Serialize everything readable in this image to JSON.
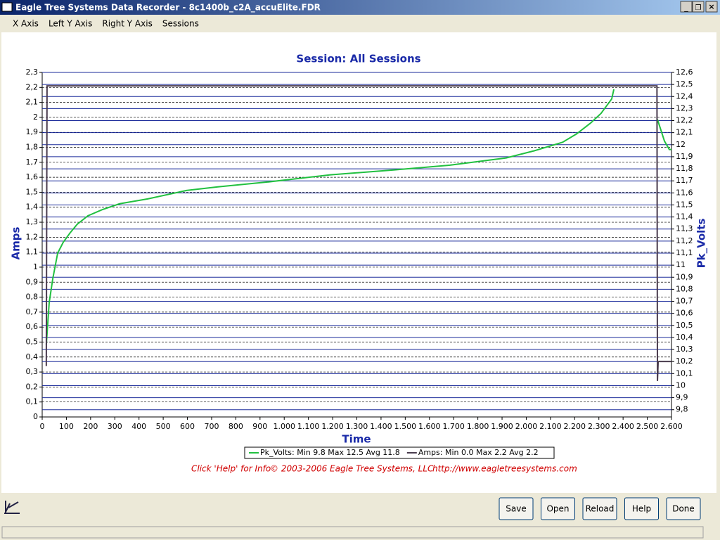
{
  "window": {
    "title": "Eagle Tree Systems Data Recorder - 8c1400b_c2A_accuElite.FDR"
  },
  "menu": [
    "X Axis",
    "Left Y Axis",
    "Right Y Axis",
    "Sessions"
  ],
  "chart_data": {
    "type": "line",
    "title": "Session: All Sessions",
    "x_label": "Time",
    "y_label": "Amps",
    "y2_label": "Pk_Volts",
    "xlim": [
      0,
      2600
    ],
    "xticks": [
      0,
      100,
      200,
      300,
      400,
      500,
      600,
      700,
      800,
      900,
      {
        "value": 1000,
        "label": "1.000"
      },
      {
        "value": 1100,
        "label": "1.100"
      },
      {
        "value": 1200,
        "label": "1.200"
      },
      {
        "value": 1300,
        "label": "1.300"
      },
      {
        "value": 1400,
        "label": "1.400"
      },
      {
        "value": 1500,
        "label": "1.500"
      },
      {
        "value": 1600,
        "label": "1.600"
      },
      {
        "value": 1700,
        "label": "1.700"
      },
      {
        "value": 1800,
        "label": "1.800"
      },
      {
        "value": 1900,
        "label": "1.900"
      },
      {
        "value": 2000,
        "label": "2.000"
      },
      {
        "value": 2100,
        "label": "2.100"
      },
      {
        "value": 2200,
        "label": "2.200"
      },
      {
        "value": 2300,
        "label": "2.300"
      },
      {
        "value": 2400,
        "label": "2.400"
      },
      {
        "value": 2500,
        "label": "2.500"
      },
      {
        "value": 2600,
        "label": "2.600"
      }
    ],
    "ylim": [
      0,
      2.3
    ],
    "yticks": [
      0,
      {
        "value": 0.1,
        "label": "0,1"
      },
      {
        "value": 0.2,
        "label": "0,2"
      },
      {
        "value": 0.3,
        "label": "0,3"
      },
      {
        "value": 0.4,
        "label": "0,4"
      },
      {
        "value": 0.5,
        "label": "0,5"
      },
      {
        "value": 0.6,
        "label": "0,6"
      },
      {
        "value": 0.7,
        "label": "0,7"
      },
      {
        "value": 0.8,
        "label": "0,8"
      },
      {
        "value": 0.9,
        "label": "0,9"
      },
      1,
      {
        "value": 1.1,
        "label": "1,1"
      },
      {
        "value": 1.2,
        "label": "1,2"
      },
      {
        "value": 1.3,
        "label": "1,3"
      },
      {
        "value": 1.4,
        "label": "1,4"
      },
      {
        "value": 1.5,
        "label": "1,5"
      },
      {
        "value": 1.6,
        "label": "1,6"
      },
      {
        "value": 1.7,
        "label": "1,7"
      },
      {
        "value": 1.8,
        "label": "1,8"
      },
      {
        "value": 1.9,
        "label": "1,9"
      },
      2,
      {
        "value": 2.1,
        "label": "2,1"
      },
      {
        "value": 2.2,
        "label": "2,2"
      },
      {
        "value": 2.3,
        "label": "2,3"
      }
    ],
    "y2lim": [
      9.74,
      12.6
    ],
    "y2ticks": [
      {
        "value": 9.8,
        "label": "9,8"
      },
      {
        "value": 9.9,
        "label": "9,9"
      },
      10,
      {
        "value": 10.1,
        "label": "10,1"
      },
      {
        "value": 10.2,
        "label": "10,2"
      },
      {
        "value": 10.3,
        "label": "10,3"
      },
      {
        "value": 10.4,
        "label": "10,4"
      },
      {
        "value": 10.5,
        "label": "10,5"
      },
      {
        "value": 10.6,
        "label": "10,6"
      },
      {
        "value": 10.7,
        "label": "10,7"
      },
      {
        "value": 10.8,
        "label": "10,8"
      },
      {
        "value": 10.9,
        "label": "10,9"
      },
      11,
      {
        "value": 11.1,
        "label": "11,1"
      },
      {
        "value": 11.2,
        "label": "11,2"
      },
      {
        "value": 11.3,
        "label": "11,3"
      },
      {
        "value": 11.4,
        "label": "11,4"
      },
      {
        "value": 11.5,
        "label": "11,5"
      },
      {
        "value": 11.6,
        "label": "11,6"
      },
      {
        "value": 11.7,
        "label": "11,7"
      },
      {
        "value": 11.8,
        "label": "11,8"
      },
      {
        "value": 11.9,
        "label": "11,9"
      },
      12,
      {
        "value": 12.1,
        "label": "12,1"
      },
      {
        "value": 12.2,
        "label": "12,2"
      },
      {
        "value": 12.3,
        "label": "12,3"
      },
      {
        "value": 12.4,
        "label": "12,4"
      },
      {
        "value": 12.5,
        "label": "12,5"
      },
      {
        "value": 12.6,
        "label": "12,6"
      }
    ],
    "grid": true,
    "series": [
      {
        "name": "Pk_Volts",
        "legend_label": "Pk_Volts:  Min 9.8 Max 12.5 Avg 11.8",
        "color": "#22c040",
        "axis": "y2",
        "x": [
          17,
          29,
          44,
          64,
          87,
          116,
          145,
          189,
          247,
          320,
          436,
          596,
          726,
          930,
          1191,
          1452,
          1685,
          1917,
          2034,
          2150,
          2208,
          2266,
          2309,
          2353,
          2362,
          2450,
          2542,
          2571,
          2591,
          2600
        ],
        "values": [
          10.34,
          10.69,
          10.89,
          11.1,
          11.19,
          11.27,
          11.34,
          11.41,
          11.46,
          11.51,
          11.55,
          11.62,
          11.65,
          11.69,
          11.75,
          11.79,
          11.83,
          11.89,
          11.95,
          12.02,
          12.09,
          12.18,
          12.26,
          12.38,
          12.46,
          null,
          12.21,
          12.03,
          11.96,
          11.96
        ]
      },
      {
        "name": "Amps",
        "legend_label": "Amps:  Min 0.0 Max 2.2 Avg 2.2",
        "color": "#4a3c4e",
        "x": [
          17,
          20,
          2540,
          2542,
          2545,
          2600
        ],
        "values": [
          0.34,
          2.21,
          2.21,
          0.24,
          0.37,
          0.37
        ]
      }
    ]
  },
  "footer": {
    "help": "Click 'Help' for Info",
    "copyright": "© 2003-2006 Eagle Tree Systems, LLC",
    "url": "http://www.eagletreesystems.com"
  },
  "buttons": [
    "Save",
    "Open",
    "Reload",
    "Help",
    "Done"
  ]
}
